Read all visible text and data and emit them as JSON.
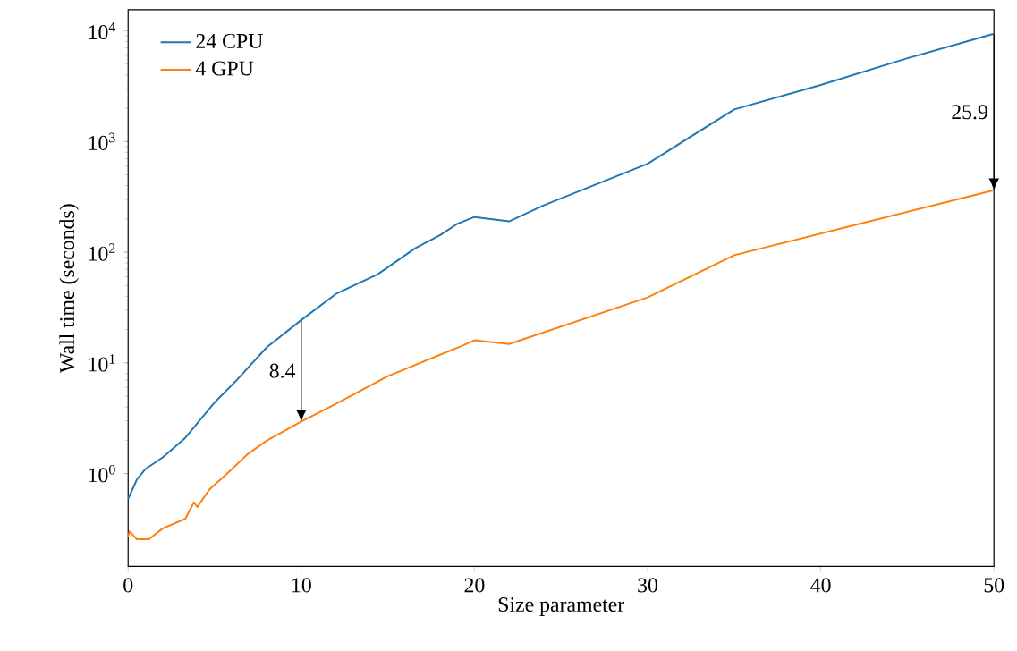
{
  "chart_data": {
    "type": "line",
    "xlabel": "Size parameter",
    "ylabel": "Wall time (seconds)",
    "log": "y",
    "legend": "top left",
    "grid": false,
    "xlim": [
      0,
      50
    ],
    "ylim": [
      0.145,
      15500
    ],
    "xticks": [
      0,
      10,
      20,
      30,
      40,
      50
    ],
    "yticks": [
      {
        "value": 1,
        "label": "10$^{0}$"
      },
      {
        "value": 10,
        "label": "10$^{1}$"
      },
      {
        "value": 100,
        "label": "10$^{2}$"
      },
      {
        "value": 1000,
        "label": "10$^{3}$"
      },
      {
        "value": 10000,
        "label": "10$^{4}$"
      }
    ],
    "series": [
      {
        "name": "24 CPU",
        "color": "#1f77b4",
        "x": [
          0,
          0.5,
          1,
          2,
          3.3,
          5,
          6.2,
          8,
          10,
          12,
          14.4,
          16.6,
          18,
          19,
          20,
          22,
          24,
          30,
          35,
          40,
          45,
          50
        ],
        "values": [
          0.59,
          0.88,
          1.1,
          1.4,
          2.1,
          4.4,
          6.8,
          13.8,
          24.4,
          42,
          63,
          109,
          142,
          180,
          208,
          190,
          265,
          630,
          1950,
          3240,
          5650,
          9400
        ]
      },
      {
        "name": "4 GPU",
        "color": "#ff7f0e",
        "x": [
          0,
          0.1,
          0.5,
          1.2,
          2,
          3.3,
          3.8,
          4,
          4.7,
          6,
          6.9,
          8,
          10,
          12,
          15,
          19.3,
          20,
          22,
          30,
          35,
          50
        ],
        "values": [
          0.27,
          0.3,
          0.255,
          0.255,
          0.32,
          0.39,
          0.55,
          0.5,
          0.72,
          1.1,
          1.5,
          1.98,
          2.95,
          4.26,
          7.6,
          14.3,
          16.0,
          14.8,
          39,
          94,
          363
        ]
      }
    ],
    "annotations": [
      {
        "text": "8.4",
        "x": 10,
        "y": 2.95
      },
      "25.9"
    ]
  }
}
